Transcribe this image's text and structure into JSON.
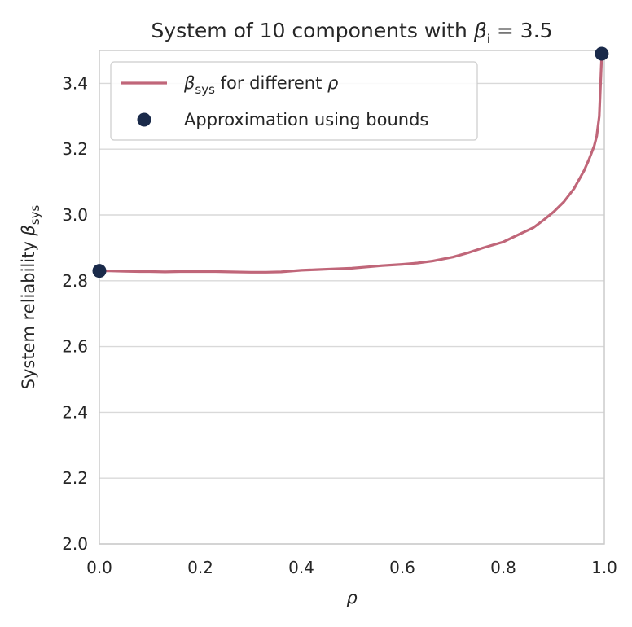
{
  "chart_data": {
    "type": "line",
    "title": {
      "prefix": "System of 10 components with ",
      "symbol": "β",
      "subscript": "i",
      "suffix": " = 3.5"
    },
    "xlabel": "ρ",
    "ylabel": {
      "prefix": "System reliability ",
      "symbol": "β",
      "subscript": "sys"
    },
    "xlim": [
      0.0,
      1.0
    ],
    "ylim": [
      2.0,
      3.5
    ],
    "xticks": [
      "0.0",
      "0.2",
      "0.4",
      "0.6",
      "0.8",
      "1.0"
    ],
    "yticks": [
      "2.0",
      "2.2",
      "2.4",
      "2.6",
      "2.8",
      "3.0",
      "3.2",
      "3.4"
    ],
    "grid": "horizontal",
    "legend": {
      "placement": "top-left",
      "line_entry": {
        "symbol": "β",
        "subscript": "sys",
        "text": " for different ",
        "italic": "ρ"
      },
      "marker_entry": "Approximation using bounds"
    },
    "series": [
      {
        "kind": "line",
        "color": "#c06679",
        "x": [
          0.0,
          0.02,
          0.05,
          0.08,
          0.1,
          0.13,
          0.16,
          0.2,
          0.23,
          0.26,
          0.3,
          0.33,
          0.36,
          0.4,
          0.43,
          0.46,
          0.5,
          0.53,
          0.56,
          0.6,
          0.63,
          0.66,
          0.7,
          0.73,
          0.76,
          0.8,
          0.83,
          0.86,
          0.88,
          0.9,
          0.92,
          0.94,
          0.96,
          0.97,
          0.98,
          0.985,
          0.99,
          0.995
        ],
        "y": [
          2.83,
          2.83,
          2.829,
          2.828,
          2.828,
          2.827,
          2.828,
          2.828,
          2.828,
          2.827,
          2.826,
          2.826,
          2.827,
          2.832,
          2.834,
          2.836,
          2.838,
          2.842,
          2.846,
          2.85,
          2.854,
          2.86,
          2.872,
          2.885,
          2.9,
          2.918,
          2.94,
          2.962,
          2.985,
          3.01,
          3.04,
          3.08,
          3.135,
          3.17,
          3.21,
          3.24,
          3.3,
          3.49
        ]
      },
      {
        "kind": "scatter",
        "color": "#1a2a4a",
        "x": [
          0.0,
          0.995
        ],
        "y": [
          2.83,
          3.49
        ]
      }
    ]
  }
}
